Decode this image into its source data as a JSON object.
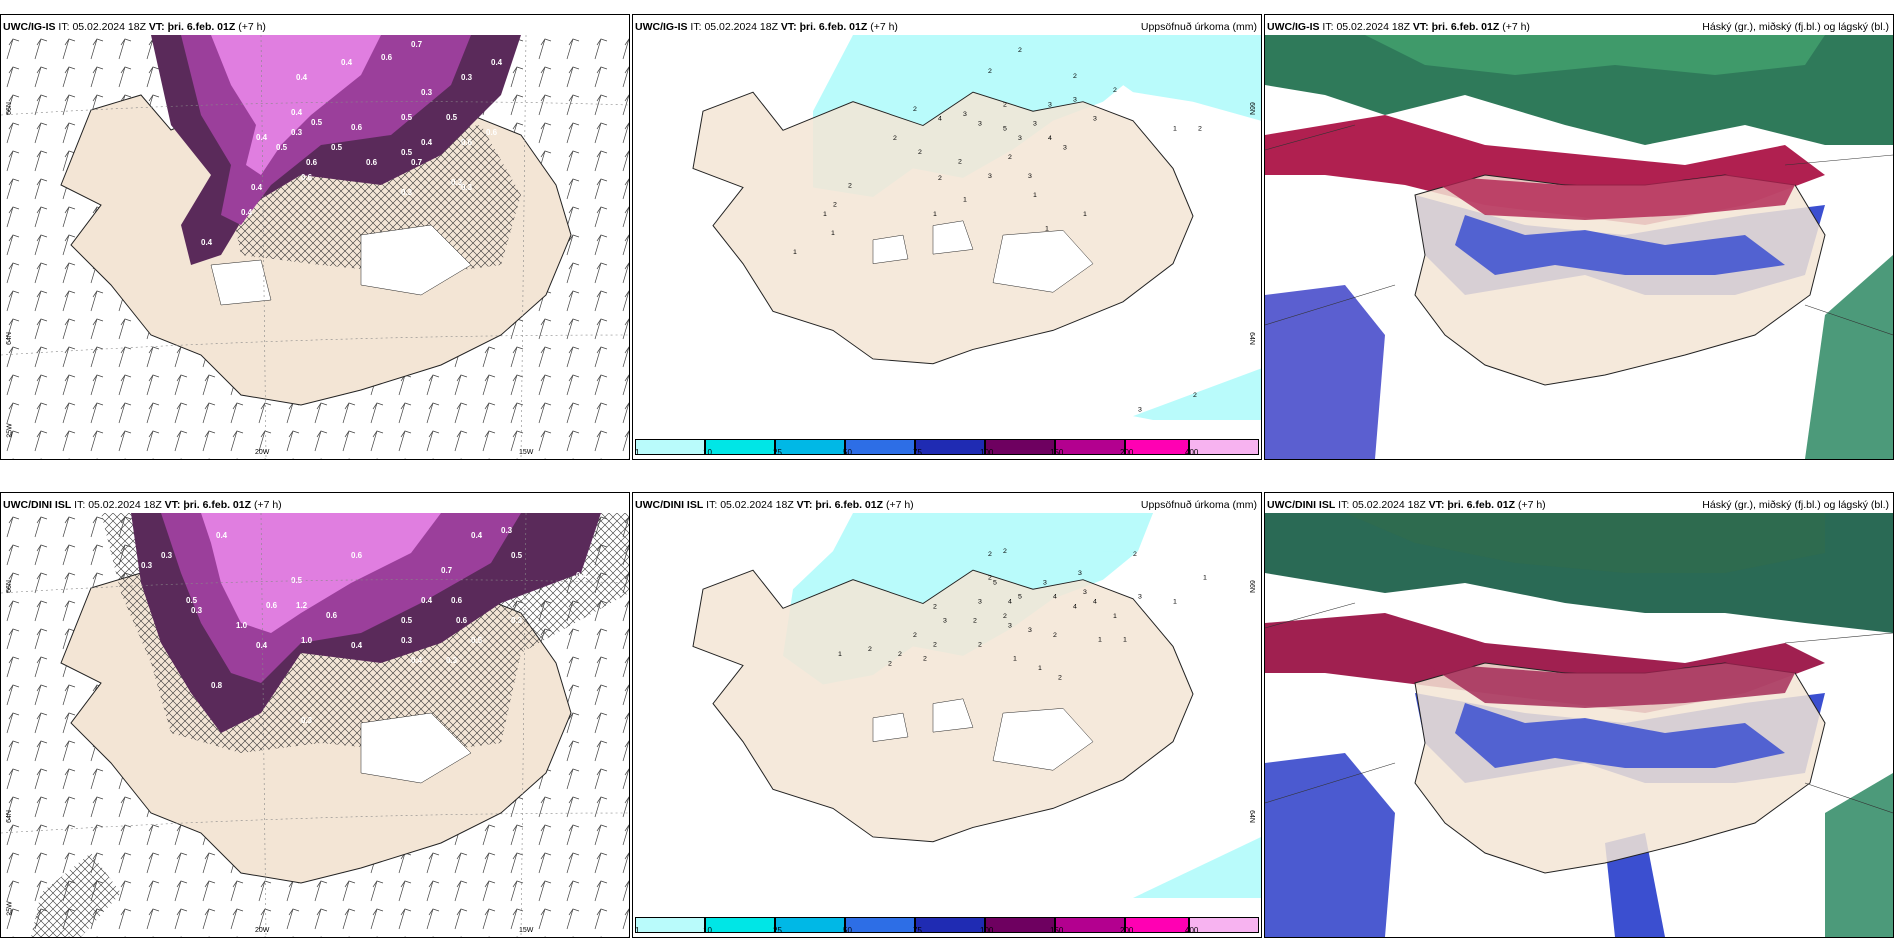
{
  "panels": [
    {
      "id": "top-left",
      "model": "UWC/IG-IS",
      "it_label": "IT:",
      "it_value": "05.02.2024 18Z",
      "vt_label": "VT:",
      "vt_value": "þri. 6.feb. 01Z",
      "lead": "(+7 h)",
      "right_title": "",
      "axis_labels": {
        "lon1": "20W",
        "lon2": "15W",
        "lat1": "66N",
        "lat2": "64N",
        "lat3": "25W"
      }
    },
    {
      "id": "top-middle",
      "model": "UWC/IG-IS",
      "it_label": "IT:",
      "it_value": "05.02.2024 18Z",
      "vt_label": "VT:",
      "vt_value": "þri. 6.feb. 01Z",
      "lead": "(+7 h)",
      "right_title": "Uppsöfnuð úrkoma (mm)",
      "axis_labels": {
        "lat1": "66N",
        "lat2": "64N"
      }
    },
    {
      "id": "top-right",
      "model": "UWC/IG-IS",
      "it_label": "IT:",
      "it_value": "05.02.2024 18Z",
      "vt_label": "VT:",
      "vt_value": "þri. 6.feb. 01Z",
      "lead": "(+7 h)",
      "right_title": "Háský (gr.), miðský (fj.bl.) og lágský (bl.)"
    },
    {
      "id": "bottom-left",
      "model": "UWC/DINI ISL",
      "it_label": "IT:",
      "it_value": "05.02.2024 18Z",
      "vt_label": "VT:",
      "vt_value": "þri. 6.feb. 01Z",
      "lead": "(+7 h)",
      "right_title": "",
      "axis_labels": {
        "lon1": "20W",
        "lon2": "15W",
        "lat1": "66N",
        "lat2": "64N",
        "lat3": "25W"
      }
    },
    {
      "id": "bottom-middle",
      "model": "UWC/DINI ISL",
      "it_label": "IT:",
      "it_value": "05.02.2024 18Z",
      "vt_label": "VT:",
      "vt_value": "þri. 6.feb. 01Z",
      "lead": "(+7 h)",
      "right_title": "Uppsöfnuð úrkoma (mm)",
      "axis_labels": {
        "lat1": "66N",
        "lat2": "64N"
      }
    },
    {
      "id": "bottom-right",
      "model": "UWC/DINI ISL",
      "it_label": "IT:",
      "it_value": "05.02.2024 18Z",
      "vt_label": "VT:",
      "vt_value": "þri. 6.feb. 01Z",
      "lead": "(+7 h)",
      "right_title": "Háský (gr.), miðský (fj.bl.) og lágský (bl.)"
    }
  ],
  "precip_legend": {
    "labels": [
      "1",
      "10",
      "25",
      "50",
      "75",
      "100",
      "150",
      "200",
      "400"
    ],
    "colors": [
      "#b9fbfb",
      "#00e6e6",
      "#00b8e6",
      "#2d6ee6",
      "#1f2bb3",
      "#6e0060",
      "#b3008f",
      "#ff00b3",
      "#f7b3f0"
    ]
  },
  "precip_values_top": [
    "2",
    "2",
    "2",
    "2",
    "3",
    "3",
    "2",
    "2",
    "3",
    "3",
    "4",
    "3",
    "3",
    "4",
    "5",
    "3",
    "3",
    "2",
    "2",
    "2",
    "2",
    "3",
    "2",
    "3",
    "1",
    "1",
    "1",
    "1",
    "1",
    "1",
    "2",
    "1",
    "1",
    "1",
    "2",
    "2",
    "3",
    "2"
  ],
  "precip_values_bottom": [
    "2",
    "2",
    "2",
    "3",
    "1",
    "2",
    "3",
    "3",
    "4",
    "5",
    "5",
    "4",
    "3",
    "2",
    "4",
    "4",
    "3",
    "1",
    "3",
    "2",
    "2",
    "3",
    "3",
    "2",
    "2",
    "2",
    "2",
    "1",
    "1",
    "1",
    "1",
    "2",
    "2",
    "2",
    "2",
    "1",
    "1",
    "2"
  ],
  "snow_values_top": [
    "0.4",
    "0.6",
    "0.7",
    "0.4",
    "0.3",
    "0.4",
    "0.3",
    "0.4",
    "0.5",
    "0.5",
    "0.6",
    "0.5",
    "0.4",
    "0.5",
    "0.5",
    "0.6",
    "0.4",
    "0.4",
    "0.6",
    "0.6",
    "0.5",
    "0.6",
    "0.3",
    "0.3",
    "0.7",
    "0.6",
    "0.4",
    "0.4",
    "0.3",
    "0.3"
  ],
  "snow_values_bottom": [
    "0.4",
    "0.3",
    "0.4",
    "0.3",
    "0.5",
    "0.6",
    "0.4",
    "0.3",
    "0.5",
    "0.7",
    "0.4",
    "0.6",
    "1.2",
    "1.0",
    "0.6",
    "0.5",
    "0.4",
    "0.3",
    "0.5",
    "0.4",
    "0.3",
    "0.6",
    "0.5",
    "0.3",
    "0.8",
    "0.3",
    "0.4",
    "0.3",
    "1.0",
    "0.6"
  ],
  "colors": {
    "land": "#f3e5d5",
    "sea": "#ffffff",
    "precip_light": "#b9fbfb",
    "snow_dark": "#5a2a5a",
    "snow_mid": "#9b3f9b",
    "snow_light": "#e07ee0",
    "cloud_high": "#2fa07a",
    "cloud_mid": "#b02050",
    "cloud_low": "#3b4fd0"
  }
}
